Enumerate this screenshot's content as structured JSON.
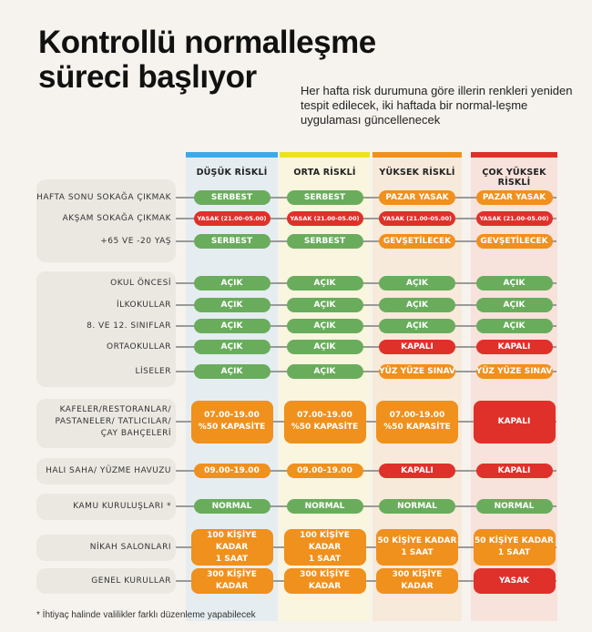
{
  "title_line1": "Kontrollü normalleşme",
  "title_line2": "süreci başlıyor",
  "subtitle": "Her hafta risk durumuna göre illerin renkleri yeniden tespit edilecek, iki haftada bir normal-leşme uygulaması güncellenecek",
  "colors": {
    "green": "#69ad5c",
    "red": "#e0302a",
    "orange": "#f0901d"
  },
  "columns": [
    {
      "label": "DÜŞÜK RİSKLİ",
      "bar": "#3fa9e8",
      "band": "#e5edf0"
    },
    {
      "label": "ORTA RİSKLİ",
      "bar": "#ece31d",
      "band": "#f9f5df"
    },
    {
      "label": "YÜKSEK RİSKLİ",
      "bar": "#f0901d",
      "band": "#f7eadb"
    },
    {
      "label": "ÇOK YÜKSEK RİSKLİ",
      "bar": "#e0302a",
      "band": "#f7e2dc"
    }
  ],
  "rows": [
    {
      "label": "HAFTA SONU SOKAĞA ÇIKMAK",
      "cells": [
        {
          "text": "SERBEST",
          "color": "green"
        },
        {
          "text": "SERBEST",
          "color": "green"
        },
        {
          "text": "PAZAR  YASAK",
          "color": "orange"
        },
        {
          "text": "PAZAR  YASAK",
          "color": "orange"
        }
      ]
    },
    {
      "label": "AKŞAM SOKAĞA ÇIKMAK",
      "cells": [
        {
          "text": "YASAK (21.00-05.00)",
          "color": "red"
        },
        {
          "text": "YASAK (21.00-05.00)",
          "color": "red"
        },
        {
          "text": "YASAK (21.00-05.00)",
          "color": "red"
        },
        {
          "text": "YASAK (21.00-05.00)",
          "color": "red"
        }
      ]
    },
    {
      "label": "+65 VE -20 YAŞ",
      "cells": [
        {
          "text": "SERBEST",
          "color": "green"
        },
        {
          "text": "SERBEST",
          "color": "green"
        },
        {
          "text": "GEVŞETİLECEK",
          "color": "orange"
        },
        {
          "text": "GEVŞETİLECEK",
          "color": "orange"
        }
      ]
    },
    {
      "label": "OKUL ÖNCESİ",
      "cells": [
        {
          "text": "AÇIK",
          "color": "green"
        },
        {
          "text": "AÇIK",
          "color": "green"
        },
        {
          "text": "AÇIK",
          "color": "green"
        },
        {
          "text": "AÇIK",
          "color": "green"
        }
      ]
    },
    {
      "label": "İLKOKULLAR",
      "cells": [
        {
          "text": "AÇIK",
          "color": "green"
        },
        {
          "text": "AÇIK",
          "color": "green"
        },
        {
          "text": "AÇIK",
          "color": "green"
        },
        {
          "text": "AÇIK",
          "color": "green"
        }
      ]
    },
    {
      "label": "8. VE 12. SINIFLAR",
      "cells": [
        {
          "text": "AÇIK",
          "color": "green"
        },
        {
          "text": "AÇIK",
          "color": "green"
        },
        {
          "text": "AÇIK",
          "color": "green"
        },
        {
          "text": "AÇIK",
          "color": "green"
        }
      ]
    },
    {
      "label": "ORTAOKULLAR",
      "cells": [
        {
          "text": "AÇIK",
          "color": "green"
        },
        {
          "text": "AÇIK",
          "color": "green"
        },
        {
          "text": "KAPALI",
          "color": "red"
        },
        {
          "text": "KAPALI",
          "color": "red"
        }
      ]
    },
    {
      "label": "LİSELER",
      "cells": [
        {
          "text": "AÇIK",
          "color": "green"
        },
        {
          "text": "AÇIK",
          "color": "green"
        },
        {
          "text": "YÜZ YÜZE SINAV",
          "color": "orange"
        },
        {
          "text": "YÜZ YÜZE SINAV",
          "color": "orange"
        }
      ]
    },
    {
      "label": "KAFELER/RESTORANLAR/\nPASTANELER/ TATLICILAR/\nÇAY BAHÇELERİ",
      "cells": [
        {
          "text": "07.00-19.00\n%50 KAPASİTE",
          "color": "orange"
        },
        {
          "text": "07.00-19.00\n%50 KAPASİTE",
          "color": "orange"
        },
        {
          "text": "07.00-19.00\n%50 KAPASİTE",
          "color": "orange"
        },
        {
          "text": "KAPALI",
          "color": "red"
        }
      ]
    },
    {
      "label": "HALI SAHA/ YÜZME HAVUZU",
      "cells": [
        {
          "text": "09.00-19.00",
          "color": "orange"
        },
        {
          "text": "09.00-19.00",
          "color": "orange"
        },
        {
          "text": "KAPALI",
          "color": "red"
        },
        {
          "text": "KAPALI",
          "color": "red"
        }
      ]
    },
    {
      "label": "KAMU KURULUŞLARI *",
      "cells": [
        {
          "text": "NORMAL",
          "color": "green"
        },
        {
          "text": "NORMAL",
          "color": "green"
        },
        {
          "text": "NORMAL",
          "color": "green"
        },
        {
          "text": "NORMAL",
          "color": "green"
        }
      ]
    },
    {
      "label": "NİKAH SALONLARI",
      "cells": [
        {
          "text": "100 KİŞİYE KADAR\n1 SAAT",
          "color": "orange"
        },
        {
          "text": "100 KİŞİYE KADAR\n1 SAAT",
          "color": "orange"
        },
        {
          "text": "50 KİŞİYE KADAR\n1 SAAT",
          "color": "orange"
        },
        {
          "text": "50 KİŞİYE KADAR\n1 SAAT",
          "color": "orange"
        }
      ]
    },
    {
      "label": "GENEL KURULLAR",
      "cells": [
        {
          "text": "300 KİŞİYE KADAR",
          "color": "orange"
        },
        {
          "text": "300 KİŞİYE KADAR",
          "color": "orange"
        },
        {
          "text": "300 KİŞİYE KADAR",
          "color": "orange"
        },
        {
          "text": "YASAK",
          "color": "red"
        }
      ]
    }
  ],
  "footnote": "* İhtiyaç halinde valilikler farklı düzenleme yapabilecek"
}
